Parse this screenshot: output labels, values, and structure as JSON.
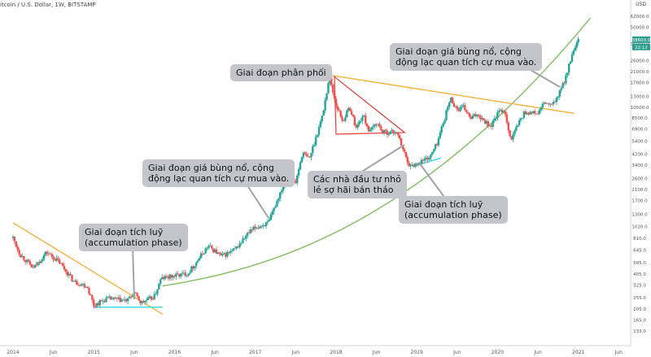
{
  "header": {
    "title": "itcoin / U.S. Dollar, 1W, BITSTAMP",
    "currency": "USD"
  },
  "chart_data": {
    "type": "candlestick",
    "title": "itcoin / U.S. Dollar, 1W, BITSTAMP",
    "y_scale": "log",
    "ylim": [
      100,
      60000
    ],
    "x_tick_labels": [
      "2014",
      "Jun",
      "2015",
      "Jun",
      "2016",
      "Jun",
      "2017",
      "Jun",
      "2018",
      "Jun",
      "2019",
      "Jun",
      "2020",
      "Jun",
      "2021",
      "Jun"
    ],
    "y_tick_labels": [
      "62000.0",
      "50000.0",
      "36000.0",
      "26000.0",
      "21000.0",
      "17000.0",
      "13000.0",
      "10500.0",
      "8500.0",
      "6900.0",
      "5400.0",
      "4200.0",
      "3400.0",
      "2600.0",
      "2100.0",
      "1700.0",
      "1300.0",
      "1020.0",
      "810.0",
      "645.0",
      "505.0",
      "405.0",
      "325.0",
      "255.0",
      "205.0",
      "165.0",
      "133.0"
    ],
    "last_price_labels": [
      "38603.0",
      "22:12"
    ],
    "price_path": [
      {
        "date": "2014-01",
        "price": 820
      },
      {
        "date": "2014-02",
        "price": 600
      },
      {
        "date": "2014-04",
        "price": 450
      },
      {
        "date": "2014-06",
        "price": 620
      },
      {
        "date": "2014-08",
        "price": 500
      },
      {
        "date": "2014-10",
        "price": 350
      },
      {
        "date": "2014-12",
        "price": 320
      },
      {
        "date": "2015-01",
        "price": 220
      },
      {
        "date": "2015-03",
        "price": 250
      },
      {
        "date": "2015-06",
        "price": 240
      },
      {
        "date": "2015-07",
        "price": 280
      },
      {
        "date": "2015-08",
        "price": 230
      },
      {
        "date": "2015-10",
        "price": 260
      },
      {
        "date": "2015-11",
        "price": 370
      },
      {
        "date": "2016-01",
        "price": 390
      },
      {
        "date": "2016-03",
        "price": 410
      },
      {
        "date": "2016-06",
        "price": 700
      },
      {
        "date": "2016-08",
        "price": 570
      },
      {
        "date": "2016-10",
        "price": 650
      },
      {
        "date": "2016-12",
        "price": 900
      },
      {
        "date": "2017-01",
        "price": 1000
      },
      {
        "date": "2017-03",
        "price": 1100
      },
      {
        "date": "2017-05",
        "price": 2200
      },
      {
        "date": "2017-06",
        "price": 2600
      },
      {
        "date": "2017-07",
        "price": 2400
      },
      {
        "date": "2017-08",
        "price": 4300
      },
      {
        "date": "2017-09",
        "price": 3800
      },
      {
        "date": "2017-10",
        "price": 5800
      },
      {
        "date": "2017-11",
        "price": 9000
      },
      {
        "date": "2017-12",
        "price": 19000
      },
      {
        "date": "2018-01",
        "price": 11000
      },
      {
        "date": "2018-02",
        "price": 8000
      },
      {
        "date": "2018-03",
        "price": 10500
      },
      {
        "date": "2018-04",
        "price": 7000
      },
      {
        "date": "2018-05",
        "price": 9000
      },
      {
        "date": "2018-06",
        "price": 6400
      },
      {
        "date": "2018-07",
        "price": 7800
      },
      {
        "date": "2018-08",
        "price": 6400
      },
      {
        "date": "2018-10",
        "price": 6500
      },
      {
        "date": "2018-11",
        "price": 4500
      },
      {
        "date": "2018-12",
        "price": 3300
      },
      {
        "date": "2019-01",
        "price": 3500
      },
      {
        "date": "2019-03",
        "price": 4000
      },
      {
        "date": "2019-04",
        "price": 5200
      },
      {
        "date": "2019-05",
        "price": 8000
      },
      {
        "date": "2019-06",
        "price": 12500
      },
      {
        "date": "2019-07",
        "price": 10000
      },
      {
        "date": "2019-08",
        "price": 10500
      },
      {
        "date": "2019-09",
        "price": 8300
      },
      {
        "date": "2019-10",
        "price": 9200
      },
      {
        "date": "2019-12",
        "price": 7200
      },
      {
        "date": "2020-01",
        "price": 9300
      },
      {
        "date": "2020-02",
        "price": 10000
      },
      {
        "date": "2020-03",
        "price": 5500
      },
      {
        "date": "2020-04",
        "price": 7500
      },
      {
        "date": "2020-05",
        "price": 9500
      },
      {
        "date": "2020-07",
        "price": 9300
      },
      {
        "date": "2020-08",
        "price": 11500
      },
      {
        "date": "2020-09",
        "price": 10700
      },
      {
        "date": "2020-10",
        "price": 13000
      },
      {
        "date": "2020-11",
        "price": 18000
      },
      {
        "date": "2020-12",
        "price": 28000
      },
      {
        "date": "2021-01",
        "price": 38603
      }
    ],
    "annotations": [
      {
        "text": "Giai đoạn tích luỹ\n(accumulation phase)"
      },
      {
        "text": "Giai đoạn giá bùng nổ, cộng\nđộng lạc quan tích cự mua vào."
      },
      {
        "text": "Giai đoạn phân phối"
      },
      {
        "text": "Các nhà đầu tư nhỏ\nlẻ sợ hãi bán tháo"
      },
      {
        "text": "Giai đoạn tích luỹ\n(accumulation phase)"
      },
      {
        "text": "Giai đoạn giá bùng nổ, cộng\nđộng lạc quan tích cự mua vào."
      }
    ],
    "colors": {
      "up": "#26a69a",
      "down": "#ef5350",
      "curve": "#7fbf5f",
      "trendline": "#f5b041",
      "support": "#3ed6e8",
      "triangle": "#e53935",
      "callout_bg": "#c3c5cb"
    }
  }
}
